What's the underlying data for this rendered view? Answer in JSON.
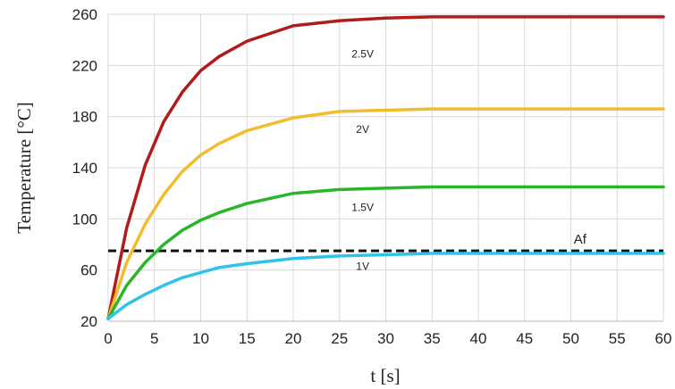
{
  "chart_data": {
    "type": "line",
    "xlabel": "t [s]",
    "ylabel": "Temperature [°C]",
    "xlim": [
      0,
      60
    ],
    "ylim": [
      20,
      260
    ],
    "x_ticks": [
      0,
      5,
      10,
      15,
      20,
      25,
      30,
      35,
      40,
      45,
      50,
      55,
      60
    ],
    "y_ticks": [
      20,
      60,
      100,
      140,
      180,
      220,
      260
    ],
    "grid": true,
    "x": [
      0,
      2,
      4,
      6,
      8,
      10,
      12,
      15,
      20,
      25,
      30,
      35,
      40,
      45,
      50,
      55,
      60
    ],
    "series": [
      {
        "name": "2.5V",
        "color": "#b01c1c",
        "values": [
          22,
          93,
          142,
          176,
          199,
          216,
          227,
          239,
          251,
          255,
          257,
          258,
          258,
          258,
          258,
          258,
          258
        ]
      },
      {
        "name": "2V",
        "color": "#f2bd2c",
        "values": [
          22,
          66,
          96,
          119,
          137,
          150,
          159,
          169,
          179,
          184,
          185,
          186,
          186,
          186,
          186,
          186,
          186
        ]
      },
      {
        "name": "1.5V",
        "color": "#2ab52a",
        "values": [
          22,
          48,
          66,
          80,
          91,
          99,
          105,
          112,
          120,
          123,
          124,
          125,
          125,
          125,
          125,
          125,
          125
        ]
      },
      {
        "name": "1V",
        "color": "#2ec3e8",
        "values": [
          22,
          33,
          41,
          48,
          54,
          58,
          62,
          65,
          69,
          71,
          72,
          73,
          73,
          73,
          73,
          73,
          73
        ]
      }
    ],
    "reference_line": {
      "name": "Af",
      "y": 75,
      "color": "#111111",
      "style": "dashed"
    }
  }
}
